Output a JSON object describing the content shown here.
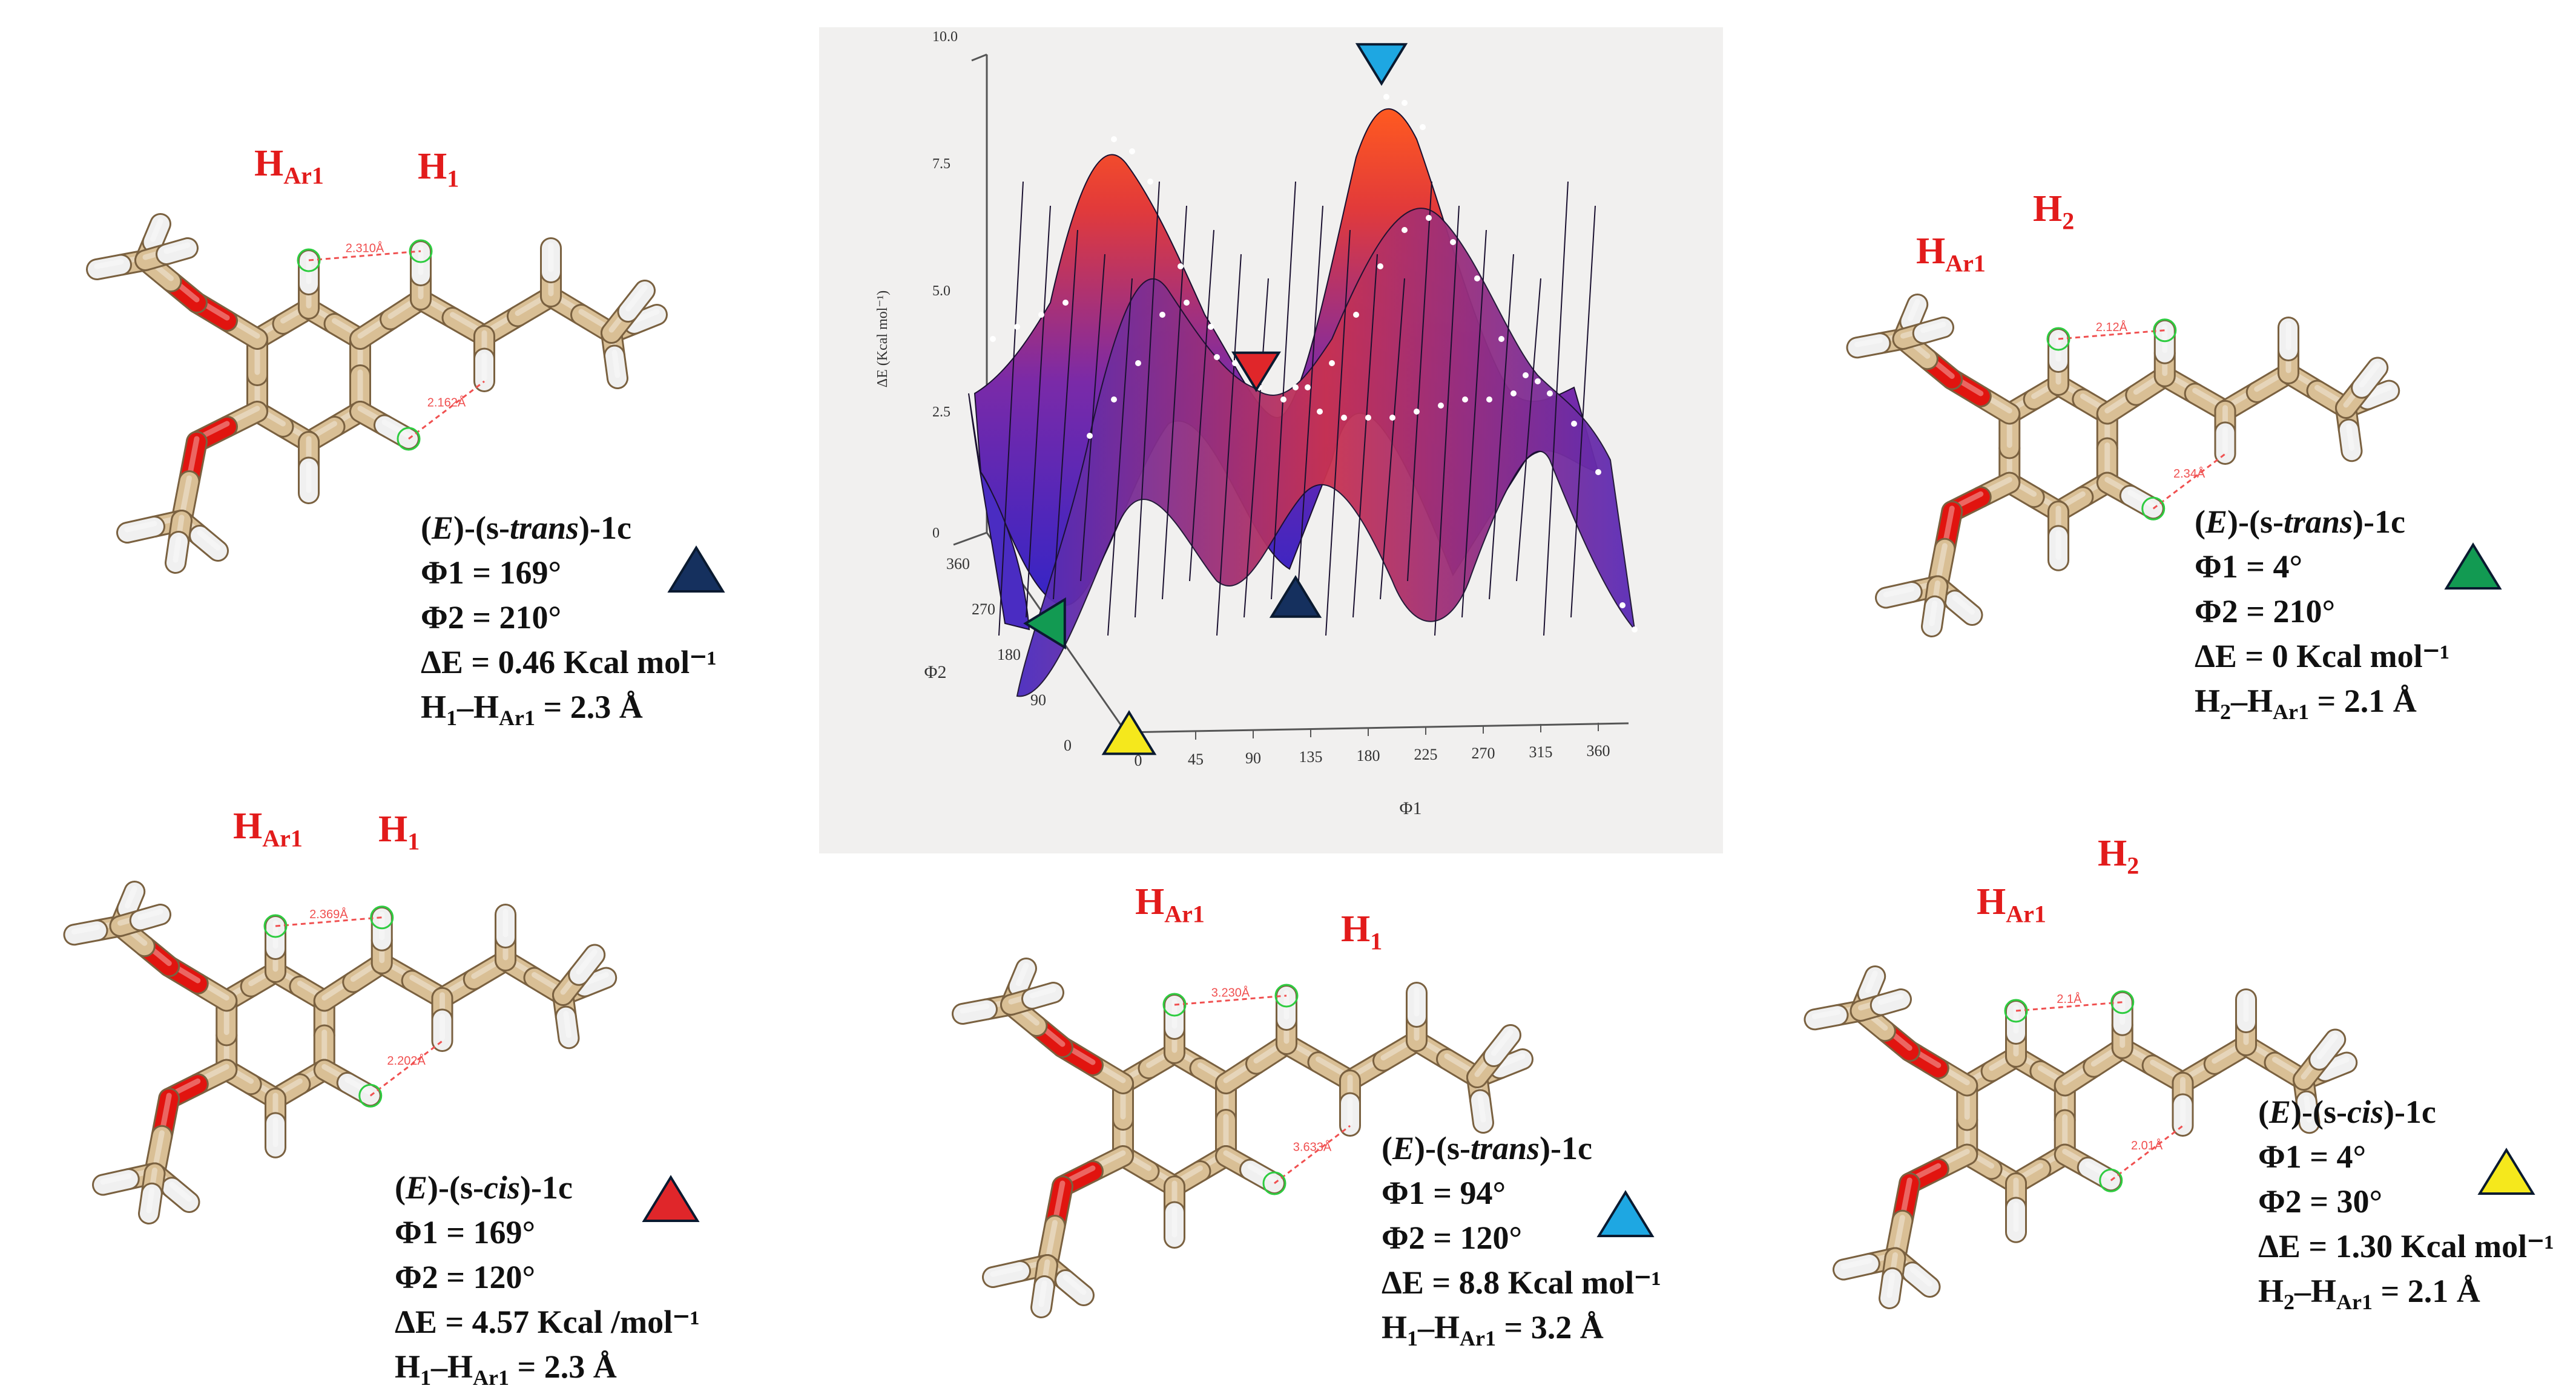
{
  "plot": {
    "z_ticks": [
      "0",
      "2.5",
      "5.0",
      "7.5",
      "10.0"
    ],
    "z_label": "ΔE (Kcal mol⁻¹)",
    "x_ticks": [
      "0",
      "45",
      "90",
      "135",
      "180",
      "225",
      "270",
      "315",
      "360"
    ],
    "x_label": "Φ1",
    "y_ticks": [
      "0",
      "90",
      "180",
      "270",
      "360"
    ],
    "y_label": "Φ2"
  },
  "conformers": [
    {
      "id": "c1",
      "name_prefix": "(",
      "name_italic_E": "E",
      "name_mid": ")-(s-",
      "name_italic_conf": "trans",
      "name_suffix": ")-1c",
      "phi1": "Φ1 = 169°",
      "phi2": "Φ2 = 210°",
      "dE": "ΔE = 0.46 Kcal mol⁻¹",
      "dist_a": "H",
      "dist_a_sub": "1",
      "dist_mid": "–H",
      "dist_b_sub": "Ar1",
      "dist_val": " = 2.3 Å",
      "marker_color": "#15305e",
      "h_labels": [
        {
          "main": "H",
          "sub": "Ar1"
        },
        {
          "main": "H",
          "sub": "1"
        }
      ],
      "distances": [
        "2.310Å",
        "2.162Å"
      ]
    },
    {
      "id": "c2",
      "name_prefix": "(",
      "name_italic_E": "E",
      "name_mid": ")-(s-",
      "name_italic_conf": "trans",
      "name_suffix": ")-1c",
      "phi1": "Φ1 = 4°",
      "phi2": "Φ2 = 210°",
      "dE": "ΔE = 0 Kcal mol⁻¹",
      "dist_a": "H",
      "dist_a_sub": "2",
      "dist_mid": "–H",
      "dist_b_sub": "Ar1",
      "dist_val": " = 2.1 Å",
      "marker_color": "#129a52",
      "h_labels": [
        {
          "main": "H",
          "sub": "Ar1"
        },
        {
          "main": "H",
          "sub": "2"
        }
      ],
      "distances": [
        "2.12Å",
        "2.34Å"
      ]
    },
    {
      "id": "c3",
      "name_prefix": "(",
      "name_italic_E": "E",
      "name_mid": ")-(s-",
      "name_italic_conf": "cis",
      "name_suffix": ")-1c",
      "phi1": "Φ1 = 169°",
      "phi2": "Φ2 = 120°",
      "dE": "ΔE = 4.57 Kcal /mol⁻¹",
      "dist_a": "H",
      "dist_a_sub": "1",
      "dist_mid": "–H",
      "dist_b_sub": "Ar1",
      "dist_val": " = 2.3 Å",
      "marker_color": "#e0262a",
      "h_labels": [
        {
          "main": "H",
          "sub": "Ar1"
        },
        {
          "main": "H",
          "sub": "1"
        }
      ],
      "distances": [
        "2.369Å",
        "2.202Å"
      ]
    },
    {
      "id": "c4",
      "name_prefix": "(",
      "name_italic_E": "E",
      "name_mid": ")-(s-",
      "name_italic_conf": "trans",
      "name_suffix": ")-1c",
      "phi1": "Φ1 = 94°",
      "phi2": "Φ2 = 120°",
      "dE": "ΔE = 8.8 Kcal mol⁻¹",
      "dist_a": "H",
      "dist_a_sub": "1",
      "dist_mid": "–H",
      "dist_b_sub": "Ar1",
      "dist_val": " = 3.2 Å",
      "marker_color": "#1ea7e2",
      "h_labels": [
        {
          "main": "H",
          "sub": "Ar1"
        },
        {
          "main": "H",
          "sub": "1"
        }
      ],
      "distances": [
        "3.230Å",
        "3.633Å"
      ]
    },
    {
      "id": "c5",
      "name_prefix": "(",
      "name_italic_E": "E",
      "name_mid": ")-(s-",
      "name_italic_conf": "cis",
      "name_suffix": ")-1c",
      "phi1": "Φ1 = 4°",
      "phi2": "Φ2 = 30°",
      "dE": "ΔE = 1.30 Kcal mol⁻¹",
      "dist_a": "H",
      "dist_a_sub": "2",
      "dist_mid": "–H",
      "dist_b_sub": "Ar1",
      "dist_val": " = 2.1 Å",
      "marker_color": "#f5e81c",
      "h_labels": [
        {
          "main": "H",
          "sub": "Ar1"
        },
        {
          "main": "H",
          "sub": "2"
        }
      ],
      "distances": [
        "2.1Å",
        "2.01Å"
      ]
    }
  ],
  "colors": {
    "carbon": "#d9bf95",
    "oxygen": "#e1140f",
    "hydrogen": "#f0f0f0",
    "h_label": "#e21b1b",
    "surface_low": "#3a2ec8",
    "surface_high": "#ff4a1a"
  }
}
